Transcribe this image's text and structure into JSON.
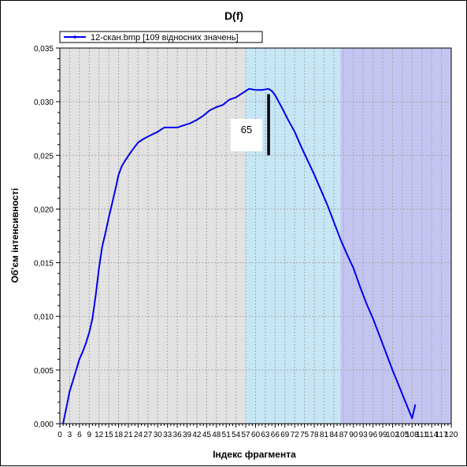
{
  "chart_data": {
    "type": "line",
    "title": "D(f)",
    "xlabel": "Індекс фрагмента",
    "ylabel": "Об'єм інтенсивності",
    "xlim": [
      0,
      120
    ],
    "ylim": [
      0,
      0.035
    ],
    "x_ticks": [
      "0",
      "3",
      "6",
      "9",
      "12",
      "15",
      "18",
      "21",
      "24",
      "27",
      "30",
      "33",
      "36",
      "39",
      "42",
      "45",
      "48",
      "51",
      "54",
      "57",
      "60",
      "63",
      "66",
      "69",
      "72",
      "75",
      "78",
      "81",
      "84",
      "87",
      "90",
      "93",
      "96",
      "99",
      "102",
      "105",
      "108",
      "111",
      "114",
      "117",
      "120"
    ],
    "y_ticks": [
      "0,000",
      "0,005",
      "0,010",
      "0,015",
      "0,020",
      "0,025",
      "0,030",
      "0,035"
    ],
    "grid": true,
    "legend_position": "top-left",
    "legend": [
      "12-скан.bmp [109 відносних значень]"
    ],
    "series_color": "#0000ee",
    "regions": [
      {
        "x_from": 0,
        "x_to": 57,
        "color": "#e2e2e2"
      },
      {
        "x_from": 57,
        "x_to": 86,
        "color": "#c6e6f6"
      },
      {
        "x_from": 86,
        "x_to": 120,
        "color": "#c4c4f0"
      }
    ],
    "annotation": {
      "text": "65",
      "x": 63.5,
      "marker_x": 64,
      "y_from": 0.025,
      "y_to": 0.0307
    },
    "series": [
      {
        "name": "12-скан.bmp [109 відносних значень]",
        "x": [
          1,
          2,
          3,
          4,
          5,
          6,
          7,
          8,
          9,
          10,
          11,
          12,
          13,
          14,
          15,
          16,
          17,
          18,
          19,
          20,
          22,
          24,
          26,
          28,
          30,
          32,
          34,
          36,
          38,
          40,
          42,
          44,
          46,
          48,
          50,
          52,
          54,
          56,
          58,
          60,
          62,
          64,
          65,
          66,
          68,
          70,
          72,
          74,
          76,
          78,
          80,
          82,
          84,
          86,
          88,
          90,
          92,
          94,
          96,
          98,
          100,
          102,
          104,
          106,
          108,
          109
        ],
        "values": [
          0.0,
          0.0015,
          0.003,
          0.004,
          0.005,
          0.006,
          0.0067,
          0.0075,
          0.0085,
          0.0098,
          0.012,
          0.0145,
          0.0165,
          0.0178,
          0.0192,
          0.0205,
          0.0218,
          0.0232,
          0.024,
          0.0245,
          0.0254,
          0.0262,
          0.0266,
          0.0269,
          0.0272,
          0.0276,
          0.0276,
          0.0276,
          0.0278,
          0.028,
          0.0283,
          0.0287,
          0.0292,
          0.0295,
          0.0297,
          0.0302,
          0.0304,
          0.0308,
          0.0312,
          0.0311,
          0.0311,
          0.0312,
          0.031,
          0.0306,
          0.0295,
          0.0283,
          0.0272,
          0.0258,
          0.0245,
          0.0232,
          0.0218,
          0.0204,
          0.0188,
          0.0172,
          0.0158,
          0.0145,
          0.0128,
          0.0112,
          0.0098,
          0.0082,
          0.0066,
          0.005,
          0.0035,
          0.002,
          0.0005,
          0.0018
        ]
      }
    ]
  }
}
